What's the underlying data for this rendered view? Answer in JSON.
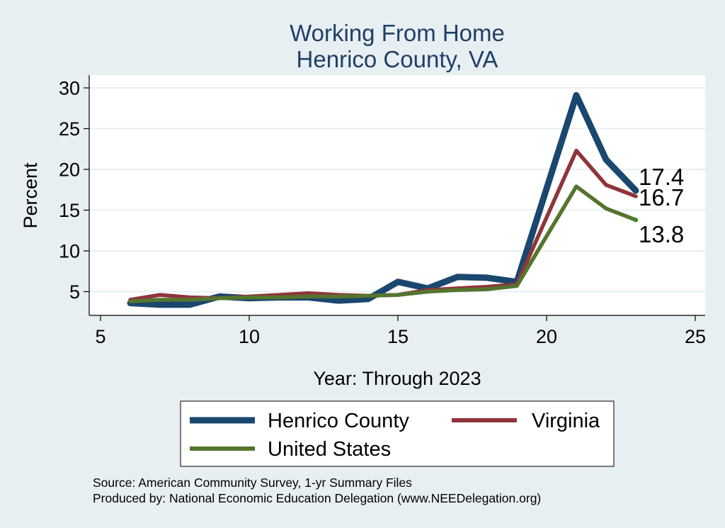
{
  "chart_data": {
    "type": "line",
    "title": [
      "Working From Home",
      "Henrico County, VA"
    ],
    "xlabel": "Year: Through 2023",
    "ylabel": "Percent",
    "xlim": [
      5,
      25
    ],
    "ylim": [
      2.5,
      31
    ],
    "xticks": [
      5,
      10,
      15,
      20,
      25
    ],
    "yticks": [
      5,
      10,
      15,
      20,
      25,
      30
    ],
    "grid": true,
    "series": [
      {
        "name": "Henrico County",
        "color": "#1a476f",
        "x": [
          6,
          7,
          8,
          9,
          10,
          11,
          12,
          13,
          14,
          15,
          16,
          17,
          18,
          19,
          21,
          22,
          23
        ],
        "y": [
          3.6,
          3.4,
          3.4,
          4.4,
          4.2,
          4.3,
          4.3,
          3.9,
          4.1,
          6.2,
          5.4,
          6.8,
          6.7,
          6.2,
          29.1,
          21.2,
          17.4
        ],
        "end_label": "17.4"
      },
      {
        "name": "Virginia",
        "color": "#90353b",
        "x": [
          6,
          7,
          8,
          9,
          10,
          11,
          12,
          13,
          14,
          15,
          16,
          17,
          18,
          19,
          21,
          22,
          23
        ],
        "y": [
          4.0,
          4.6,
          4.3,
          4.2,
          4.4,
          4.6,
          4.8,
          4.6,
          4.5,
          4.6,
          5.2,
          5.4,
          5.6,
          5.9,
          22.3,
          18.1,
          16.7
        ],
        "end_label": "16.7"
      },
      {
        "name": "United States",
        "color": "#55752f",
        "x": [
          6,
          7,
          8,
          9,
          10,
          11,
          12,
          13,
          14,
          15,
          16,
          17,
          18,
          19,
          21,
          22,
          23
        ],
        "y": [
          3.8,
          4.0,
          4.0,
          4.2,
          4.3,
          4.3,
          4.4,
          4.4,
          4.5,
          4.6,
          5.0,
          5.2,
          5.3,
          5.7,
          17.9,
          15.2,
          13.8
        ],
        "end_label": "13.8"
      }
    ],
    "legend": {
      "placement": "bottom"
    },
    "notes": [
      "Source: American Community Survey, 1-yr Summary Files",
      "Produced by: National Economic Education Delegation (www.NEEDelegation.org)"
    ]
  },
  "colors": {
    "background": "#e8eff2",
    "plot_background": "#ffffff",
    "title": "#1f3f66",
    "grid": "#e8eff2",
    "end_dot": "#3a8a2a"
  }
}
